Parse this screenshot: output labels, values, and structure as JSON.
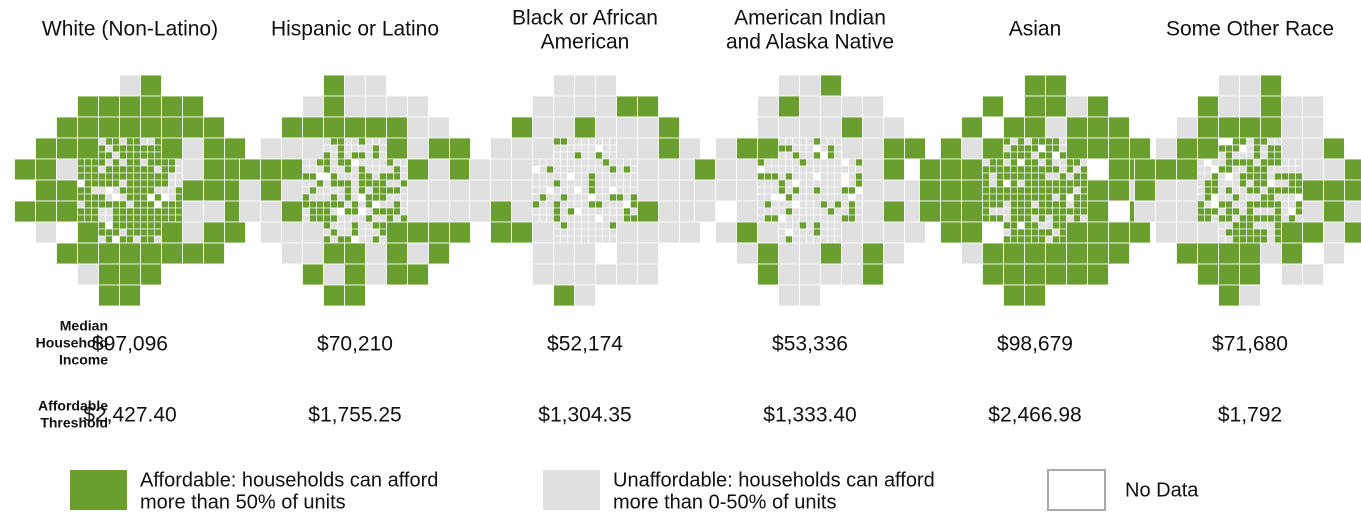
{
  "panels": [
    {
      "title_lines": [
        "White (Non-Latino)"
      ],
      "income": "$97,096",
      "threshold": "$2,427.40"
    },
    {
      "title_lines": [
        "Hispanic or Latino"
      ],
      "income": "$70,210",
      "threshold": "$1,755.25"
    },
    {
      "title_lines": [
        "Black or African",
        "American"
      ],
      "income": "$52,174",
      "threshold": "$1,304.35"
    },
    {
      "title_lines": [
        "American Indian",
        "and Alaska Native"
      ],
      "income": "$53,336",
      "threshold": "$1,333.40"
    },
    {
      "title_lines": [
        "Asian"
      ],
      "income": "$98,679",
      "threshold": "$2,466.98"
    },
    {
      "title_lines": [
        "Some Other Race"
      ],
      "income": "$71,680",
      "threshold": "$1,792"
    }
  ],
  "row_labels": {
    "income": [
      "Median",
      "Household",
      "Income"
    ],
    "threshold": [
      "Affordable",
      "Threshold"
    ]
  },
  "legend": [
    {
      "lines": [
        "Affordable: households can afford",
        "more than 50% of units"
      ],
      "color": "#6a9f2f"
    },
    {
      "lines": [
        "Unaffordable: households can afford",
        "more than 0-50% of units"
      ],
      "color": "#e0e0e0"
    },
    {
      "lines": [
        "No Data"
      ],
      "color": "#ffffff"
    }
  ]
}
